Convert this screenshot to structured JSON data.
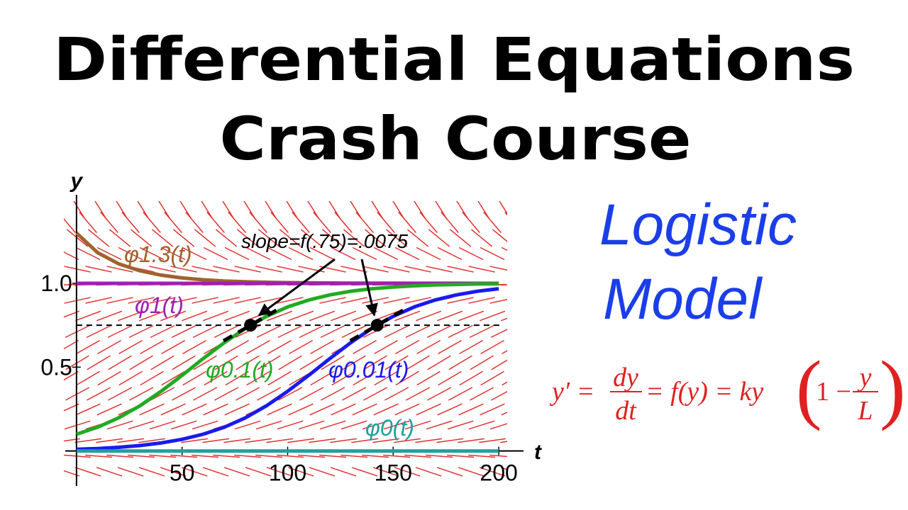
{
  "header": {
    "title_line1": "Differential Equations",
    "title_line2": "Crash Course"
  },
  "side": {
    "topic_line1": "Logistic",
    "topic_line2": "Model",
    "equation": {
      "lhs": "y′ =",
      "frac1_num": "dy",
      "frac1_den": "dt",
      "mid": "= f(y) = ky",
      "paren_left": "(",
      "one_minus": "1 −",
      "frac2_num": "y",
      "frac2_den": "L",
      "paren_right": ")"
    }
  },
  "chart_data": {
    "type": "line",
    "x_label": "t",
    "y_label": "y",
    "xlim": [
      -6,
      204
    ],
    "ylim": [
      -0.2,
      1.49
    ],
    "xticks": [
      50,
      100,
      150,
      200
    ],
    "yticks": [
      0.5,
      {
        "value": 1,
        "label": "1.0"
      }
    ],
    "x": [
      0,
      10,
      20,
      30,
      40,
      50,
      60,
      70,
      80,
      90,
      100,
      110,
      120,
      130,
      140,
      150,
      160,
      170,
      180,
      190,
      200
    ],
    "series": [
      {
        "name": "φ1.3(t)",
        "color": "#a0622d",
        "values": [
          1.3,
          1.183,
          1.116,
          1.075,
          1.049,
          1.032,
          1.021,
          1.014,
          1.0095,
          1.0063,
          1.0042,
          1.0028,
          1.0019,
          1.0013,
          1.0009,
          1.0006,
          1.0004,
          1.0003,
          1.0002,
          1.0001,
          1.0001
        ]
      },
      {
        "name": "φ1(t)",
        "color": "#a020b0",
        "values": [
          1,
          1,
          1,
          1,
          1,
          1,
          1,
          1,
          1,
          1,
          1,
          1,
          1,
          1,
          1,
          1,
          1,
          1,
          1,
          1,
          1
        ]
      },
      {
        "name": "φ0.1(t)",
        "color": "#22aa22",
        "values": [
          0.1,
          0.142,
          0.198,
          0.269,
          0.355,
          0.451,
          0.551,
          0.646,
          0.731,
          0.803,
          0.859,
          0.9,
          0.931,
          0.953,
          0.968,
          0.978,
          0.985,
          0.99,
          0.993,
          0.996,
          0.997
        ]
      },
      {
        "name": "φ0.01(t)",
        "color": "#1a1aee",
        "values": [
          0.01,
          0.0148,
          0.022,
          0.0324,
          0.0476,
          0.0695,
          0.1,
          0.142,
          0.198,
          0.27,
          0.356,
          0.451,
          0.551,
          0.647,
          0.732,
          0.803,
          0.859,
          0.901,
          0.931,
          0.953,
          0.968
        ]
      },
      {
        "name": "φ0(t)",
        "color": "#20a0a0",
        "values": [
          0,
          0,
          0,
          0,
          0,
          0,
          0,
          0,
          0,
          0,
          0,
          0,
          0,
          0,
          0,
          0,
          0,
          0,
          0,
          0,
          0
        ]
      }
    ],
    "reference_line": 0.75,
    "points": [
      {
        "x": 82.4,
        "y": 0.75
      },
      {
        "x": 142.4,
        "y": 0.75
      }
    ],
    "annotation": "slope=f(.75)=.0075"
  }
}
